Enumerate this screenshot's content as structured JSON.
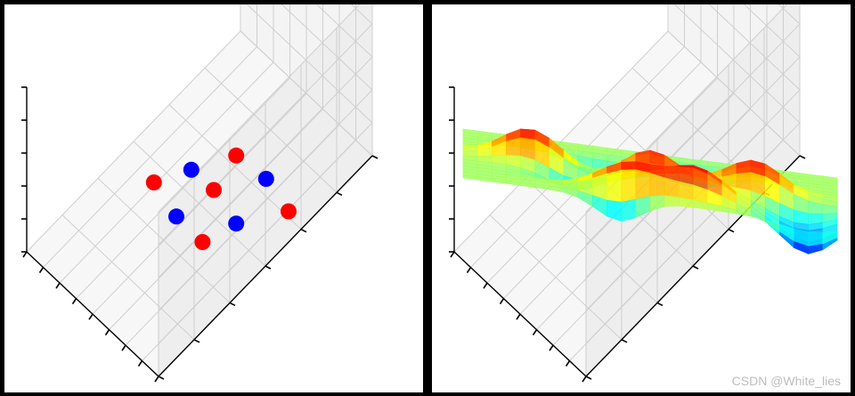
{
  "chart_data": [
    {
      "type": "scatter",
      "projection": "3d",
      "grid": true,
      "title": "",
      "xlabel": "",
      "ylabel": "",
      "zlabel": "",
      "x_ticks": 8,
      "y_ticks": 6,
      "z_ticks": 5,
      "series": [
        {
          "color": "#ff0000",
          "points": [
            {
              "x": 0.18,
              "y": 0.55,
              "z": 0.52
            },
            {
              "x": 0.62,
              "y": 0.78,
              "z": 0.66
            },
            {
              "x": 0.5,
              "y": 0.45,
              "z": 0.49
            },
            {
              "x": 0.9,
              "y": 0.3,
              "z": 0.37
            },
            {
              "x": 0.44,
              "y": 0.15,
              "z": 0.18
            }
          ]
        },
        {
          "color": "#0000ff",
          "points": [
            {
              "x": 0.38,
              "y": 0.68,
              "z": 0.58
            },
            {
              "x": 0.78,
              "y": 0.5,
              "z": 0.56
            },
            {
              "x": 0.3,
              "y": 0.38,
              "z": 0.31
            },
            {
              "x": 0.62,
              "y": 0.22,
              "z": 0.3
            }
          ]
        }
      ]
    },
    {
      "type": "surface",
      "projection": "3d",
      "grid": true,
      "colormap": "jet",
      "title": "",
      "xlabel": "",
      "ylabel": "",
      "zlabel": "",
      "x_ticks": 8,
      "y_ticks": 6,
      "z_ticks": 5,
      "source_points": [
        {
          "x": 0.18,
          "y": 0.55,
          "z": 0.52
        },
        {
          "x": 0.62,
          "y": 0.78,
          "z": 0.66
        },
        {
          "x": 0.5,
          "y": 0.45,
          "z": 0.49
        },
        {
          "x": 0.9,
          "y": 0.3,
          "z": 0.37
        },
        {
          "x": 0.44,
          "y": 0.15,
          "z": 0.18
        },
        {
          "x": 0.38,
          "y": 0.68,
          "z": 0.58
        },
        {
          "x": 0.78,
          "y": 0.5,
          "z": 0.56
        },
        {
          "x": 0.3,
          "y": 0.38,
          "z": 0.31
        },
        {
          "x": 0.62,
          "y": 0.22,
          "z": 0.3
        }
      ]
    }
  ],
  "watermark": "CSDN @White_lies"
}
